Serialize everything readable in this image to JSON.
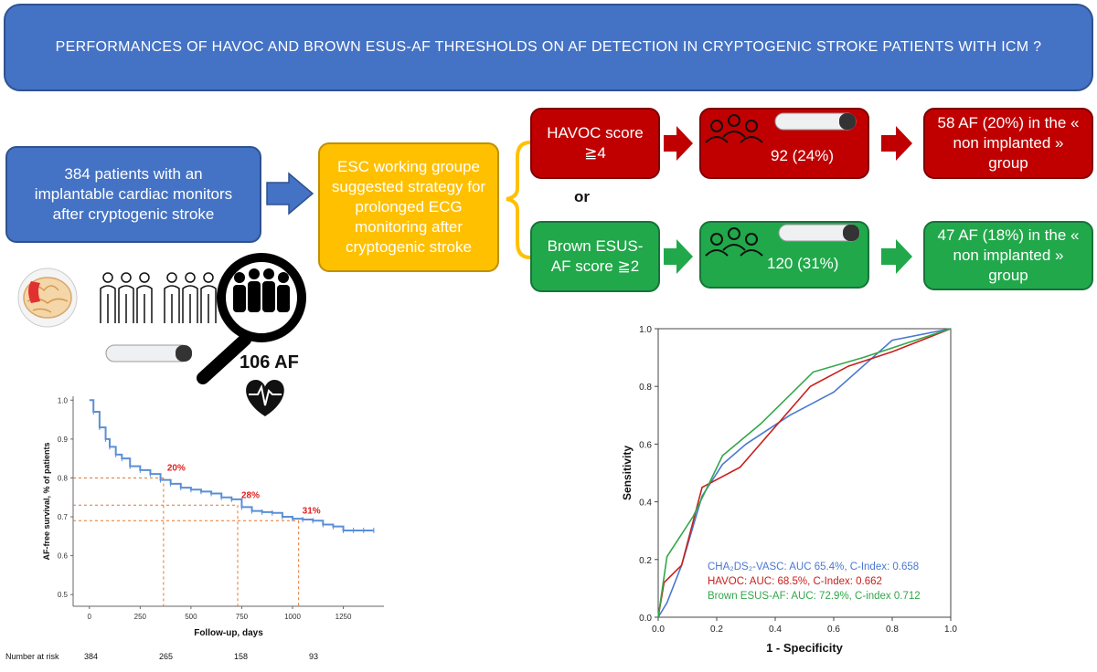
{
  "title": "PERFORMANCES OF HAVOC AND BROWN ESUS-AF THRESHOLDS ON AF DETECTION IN CRYPTOGENIC STROKE PATIENTS WITH ICM ?",
  "boxes": {
    "patients": "384 patients with an implantable cardiac monitors after cryptogenic stroke",
    "esc": "ESC working groupe suggested strategy for prolonged ECG monitoring after cryptogenic stroke",
    "havoc_score": "HAVOC score ≧4",
    "havoc_count": "92 (24%)",
    "havoc_result": "58 AF (20%) in the « non implanted » group",
    "or": "or",
    "brown_score": "Brown ESUS-AF score ≧2",
    "brown_count": "120 (31%)",
    "brown_result": "47 AF (18%) in the « non implanted » group",
    "af_detected": "106 AF"
  },
  "colors": {
    "blue": "#4472c4",
    "yellow": "#ffc000",
    "red": "#c00000",
    "green": "#21a84a",
    "km_line": "#5b8fd6",
    "ref_line": "#e8742b"
  },
  "icons": [
    "brain-icon",
    "people-row-icon",
    "magnifier-icon",
    "heart-ecg-icon",
    "monitor-device-icon",
    "people-group-icon"
  ],
  "chart_data": [
    {
      "type": "line",
      "ylabel": "AF-free survival, % of patients",
      "xlabel": "Follow-up, days",
      "xlim": [
        -80,
        1450
      ],
      "ylim": [
        0.47,
        1.01
      ],
      "xticks": [
        0,
        250,
        500,
        750,
        1000,
        1250
      ],
      "yticks": [
        0.5,
        0.6,
        0.7,
        0.8,
        0.9,
        1.0
      ],
      "series": [
        {
          "x": [
            0,
            20,
            50,
            80,
            100,
            130,
            160,
            200,
            250,
            300,
            350,
            400,
            450,
            500,
            550,
            600,
            650,
            700,
            750,
            800,
            850,
            900,
            950,
            1000,
            1050,
            1100,
            1150,
            1200,
            1250,
            1300,
            1350,
            1400
          ],
          "y": [
            1.0,
            0.97,
            0.93,
            0.9,
            0.88,
            0.86,
            0.85,
            0.83,
            0.82,
            0.81,
            0.795,
            0.785,
            0.775,
            0.77,
            0.765,
            0.76,
            0.75,
            0.745,
            0.725,
            0.715,
            0.712,
            0.71,
            0.7,
            0.695,
            0.693,
            0.69,
            0.68,
            0.675,
            0.665,
            0.665,
            0.665,
            0.665
          ]
        }
      ],
      "annotations": [
        {
          "label": "20%",
          "x": 365,
          "y": 0.8
        },
        {
          "label": "28%",
          "x": 730,
          "y": 0.73
        },
        {
          "label": "31%",
          "x": 1030,
          "y": 0.69
        }
      ],
      "risk_table": {
        "label": "Number at risk",
        "values": [
          "384",
          "265",
          "158",
          "93"
        ]
      }
    },
    {
      "type": "line",
      "xlabel": "1 - Specificity",
      "ylabel": "Sensitivity",
      "xlim": [
        0,
        1
      ],
      "ylim": [
        0,
        1
      ],
      "xticks": [
        0.0,
        0.2,
        0.4,
        0.6,
        0.8,
        1.0
      ],
      "yticks": [
        0.0,
        0.2,
        0.4,
        0.6,
        0.8,
        1.0
      ],
      "series": [
        {
          "name": "CHA₂DS₂-VASC: AUC 65.4%,  C-Index: 0.658",
          "color": "#4a78d0",
          "x": [
            0,
            0.03,
            0.08,
            0.15,
            0.22,
            0.3,
            0.45,
            0.6,
            0.8,
            1.0
          ],
          "y": [
            0,
            0.05,
            0.18,
            0.42,
            0.53,
            0.6,
            0.7,
            0.78,
            0.96,
            1.0
          ]
        },
        {
          "name": "HAVOC: AUC: 68.5%, C-Index: 0.662",
          "color": "#c8201c",
          "x": [
            0,
            0.02,
            0.08,
            0.15,
            0.28,
            0.52,
            0.65,
            0.8,
            1.0
          ],
          "y": [
            0,
            0.12,
            0.18,
            0.45,
            0.52,
            0.8,
            0.87,
            0.92,
            1.0
          ]
        },
        {
          "name": "Brown ESUS-AF: AUC: 72.9%, C-index 0.712",
          "color": "#34a64a",
          "x": [
            0,
            0.03,
            0.12,
            0.22,
            0.35,
            0.53,
            0.7,
            0.85,
            1.0
          ],
          "y": [
            0,
            0.21,
            0.35,
            0.56,
            0.67,
            0.85,
            0.9,
            0.95,
            1.0
          ]
        }
      ]
    }
  ]
}
